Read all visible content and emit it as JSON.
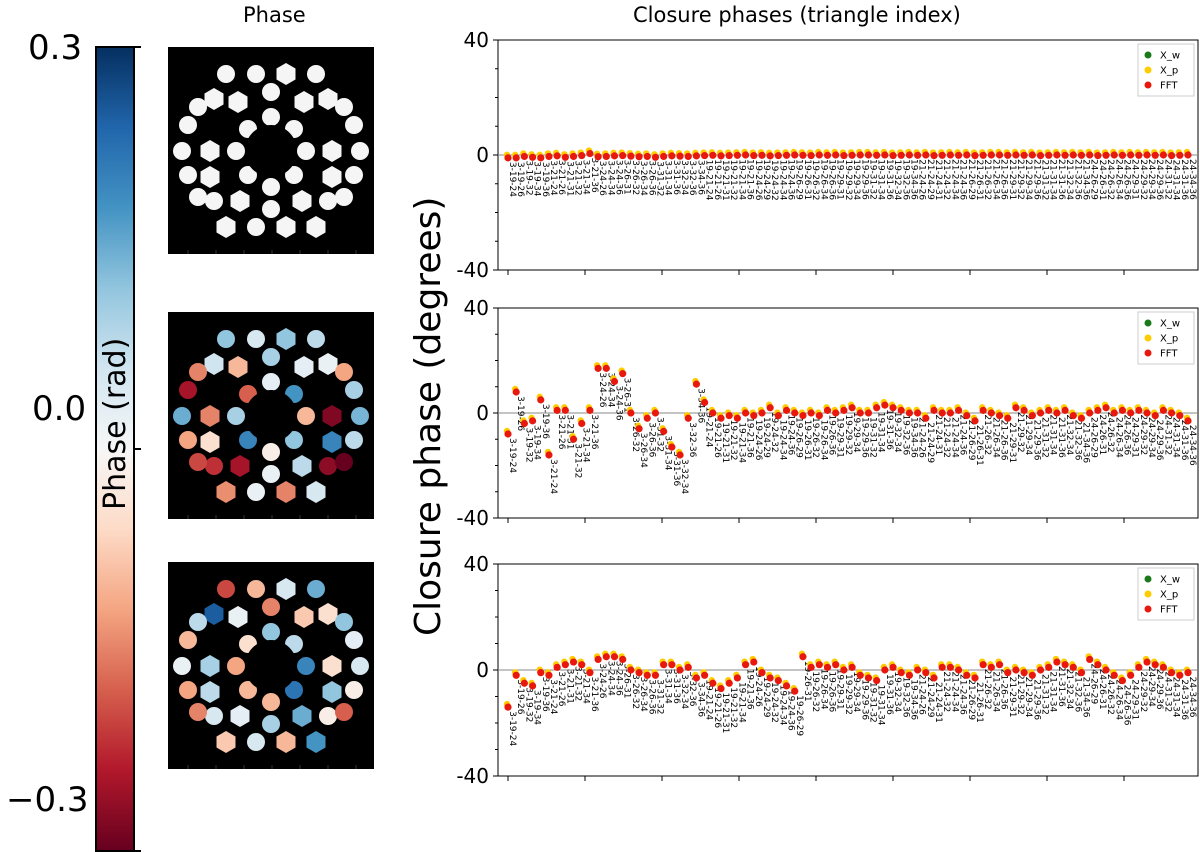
{
  "colorbar": {
    "label": "Phase (rad)",
    "max_label": "0.3",
    "mid_label": "0.0",
    "min_label": "−0.3",
    "cmap": "RdBu",
    "colors": [
      "#053061",
      "#2166ac",
      "#4393c3",
      "#92c5de",
      "#d1e5f0",
      "#f7f7f7",
      "#fddbc7",
      "#f4a582",
      "#d6604d",
      "#b2182b",
      "#67001f"
    ]
  },
  "pupil_title": "Phase",
  "closure_title": "Closure phases (triangle index)",
  "shared_ylabel": "Closure phase (degrees)",
  "chart_data": [
    {
      "type": "scatter",
      "ylim": [
        -40,
        40
      ],
      "yticks": [
        "40",
        "0",
        "-40"
      ],
      "legend_placement": "top-right",
      "series": [
        {
          "name": "X_w",
          "color": "#1a7a1a"
        },
        {
          "name": "X_p",
          "color": "#ffcc00"
        },
        {
          "name": "FFT",
          "color": "#e8190c"
        }
      ],
      "x_count": 84,
      "x_labels": [
        "3-19-24",
        "3-19-26",
        "3-19-32",
        "3-19-34",
        "3-19-36",
        "3-21-24",
        "3-21-26",
        "3-21-31",
        "3-21-32",
        "3-21-34",
        "3-21-36",
        "3-24-26",
        "3-24-34",
        "3-24-36",
        "3-26-31",
        "3-26-32",
        "3-26-34",
        "3-26-36",
        "3-31-32",
        "3-31-34",
        "3-31-36",
        "3-32-34",
        "3-32-36",
        "3-34-36",
        "19-21-24",
        "19-21-26",
        "19-21-31",
        "19-21-32",
        "19-21-34",
        "19-21-36",
        "19-24-26",
        "19-24-29",
        "19-24-32",
        "19-24-34",
        "19-24-36",
        "19-26-29",
        "19-26-31",
        "19-26-32",
        "19-26-34",
        "19-26-36",
        "19-29-31",
        "19-29-32",
        "19-29-34",
        "19-29-36",
        "19-31-32",
        "19-31-34",
        "19-31-36",
        "19-32-34",
        "19-32-36",
        "19-34-36",
        "21-24-26",
        "21-24-29",
        "21-24-31",
        "21-24-32",
        "21-24-34",
        "21-24-36",
        "21-26-29",
        "21-26-31",
        "21-26-32",
        "21-26-34",
        "21-26-36",
        "21-29-31",
        "21-29-32",
        "21-29-34",
        "21-29-36",
        "21-31-32",
        "21-31-34",
        "21-31-36",
        "21-32-34",
        "21-32-36",
        "21-34-36",
        "24-26-29",
        "24-26-31",
        "24-26-32",
        "24-26-34",
        "24-26-36",
        "24-29-31",
        "24-29-32",
        "24-29-34",
        "24-29-36",
        "24-31-32",
        "24-31-34",
        "24-31-36",
        "24-34-36"
      ],
      "values": [
        -1,
        -1,
        -0.5,
        -0.8,
        -1,
        -0.5,
        -0.3,
        -0.8,
        -0.5,
        -0.2,
        0.5,
        -0.6,
        -0.5,
        -0.3,
        -0.2,
        -0.4,
        -0.6,
        -0.5,
        -0.8,
        -0.5,
        -0.3,
        -0.4,
        -0.5,
        -0.3,
        -0.2,
        -0.1,
        -0.3,
        -0.2,
        -0.1,
        0,
        -0.2,
        -0.1,
        -0.3,
        -0.2,
        -0.1,
        0,
        -0.1,
        -0.2,
        0,
        -0.1,
        0,
        -0.2,
        -0.1,
        0,
        0,
        -0.1,
        0,
        -0.2,
        -0.1,
        0,
        -0.1,
        0,
        -0.2,
        -0.1,
        0,
        -0.1,
        0,
        -0.2,
        -0.1,
        0,
        0,
        -0.1,
        0,
        -0.1,
        0,
        -0.2,
        -0.1,
        0,
        -0.1,
        0,
        -0.1,
        0,
        -0.2,
        -0.1,
        0,
        -0.1,
        0,
        -0.1,
        0,
        -0.1,
        0,
        -0.2,
        -0.1,
        0
      ]
    },
    {
      "type": "scatter",
      "ylim": [
        -40,
        40
      ],
      "yticks": [
        "40",
        "0",
        "-40"
      ],
      "legend_placement": "top-right",
      "series": [
        {
          "name": "X_w",
          "color": "#1a7a1a"
        },
        {
          "name": "X_p",
          "color": "#ffcc00"
        },
        {
          "name": "FFT",
          "color": "#e8190c"
        }
      ],
      "x_count": 84,
      "x_labels": [
        "3-19-24",
        "3-19-26",
        "3-19-32",
        "3-19-34",
        "3-19-36",
        "3-21-24",
        "3-21-26",
        "3-21-31",
        "3-21-32",
        "3-21-34",
        "3-21-36",
        "3-24-26",
        "3-24-34",
        "3-24-36",
        "3-26-31",
        "3-26-32",
        "3-26-34",
        "3-26-36",
        "3-31-32",
        "3-31-34",
        "3-31-36",
        "3-32-34",
        "3-32-36",
        "3-34-36",
        "19-21-24",
        "19-21-26",
        "19-21-31",
        "19-21-32",
        "19-21-34",
        "19-21-36",
        "19-24-26",
        "19-24-29",
        "19-24-32",
        "19-24-34",
        "19-24-36",
        "19-26-29",
        "19-26-31",
        "19-26-32",
        "19-26-34",
        "19-26-36",
        "19-29-31",
        "19-29-32",
        "19-29-34",
        "19-29-36",
        "19-31-32",
        "19-31-34",
        "19-31-36",
        "19-32-34",
        "19-32-36",
        "19-34-36",
        "21-24-26",
        "21-24-29",
        "21-24-31",
        "21-24-32",
        "21-24-34",
        "21-24-36",
        "21-26-29",
        "21-26-31",
        "21-26-32",
        "21-26-34",
        "21-26-36",
        "21-29-31",
        "21-29-32",
        "21-29-34",
        "21-29-36",
        "21-31-32",
        "21-31-34",
        "21-31-36",
        "21-32-34",
        "21-32-36",
        "21-34-36",
        "24-26-29",
        "24-26-31",
        "24-26-32",
        "24-26-34",
        "24-26-36",
        "24-29-31",
        "24-29-32",
        "24-29-34",
        "24-29-36",
        "24-31-32",
        "24-31-34",
        "24-31-36",
        "24-34-36"
      ],
      "values": [
        -8,
        8,
        -4,
        -3,
        5,
        -16,
        1,
        1,
        -10,
        -4,
        1,
        17,
        17,
        12,
        15,
        0,
        -6,
        -2,
        0,
        -7,
        -13,
        -16,
        -2,
        11,
        4,
        0,
        -2,
        -1,
        -2,
        0,
        -1,
        0,
        2,
        -1,
        1,
        0,
        -1,
        0,
        -1,
        1,
        0,
        1,
        2,
        0,
        0,
        2,
        3,
        2,
        1,
        0,
        0,
        -2,
        1,
        0,
        0,
        1,
        -1,
        -3,
        1,
        0,
        -1,
        -2,
        2,
        1,
        -1,
        0,
        1,
        0,
        1,
        -1,
        -2,
        0,
        1,
        2,
        0,
        1,
        0,
        1,
        0,
        -1,
        1,
        0,
        -1,
        -3
      ]
    },
    {
      "type": "scatter",
      "ylim": [
        -40,
        40
      ],
      "yticks": [
        "40",
        "0",
        "-40"
      ],
      "legend_placement": "top-right",
      "series": [
        {
          "name": "X_w",
          "color": "#1a7a1a"
        },
        {
          "name": "X_p",
          "color": "#ffcc00"
        },
        {
          "name": "FFT",
          "color": "#e8190c"
        }
      ],
      "x_count": 84,
      "x_labels": [
        "3-19-24",
        "3-19-26",
        "3-19-32",
        "3-19-34",
        "3-19-36",
        "3-21-24",
        "3-21-26",
        "3-21-31",
        "3-21-32",
        "3-21-34",
        "3-21-36",
        "3-24-26",
        "3-24-34",
        "3-24-36",
        "3-26-31",
        "3-26-32",
        "3-26-34",
        "3-26-36",
        "3-31-32",
        "3-31-34",
        "3-31-36",
        "3-32-34",
        "3-32-36",
        "3-34-36",
        "19-21-24",
        "19-21-26",
        "19-21-31",
        "19-21-32",
        "19-21-34",
        "19-21-36",
        "19-24-26",
        "19-24-29",
        "19-24-32",
        "19-24-34",
        "19-24-36",
        "19-26-29",
        "19-26-31",
        "19-26-32",
        "19-26-34",
        "19-26-36",
        "19-29-31",
        "19-29-32",
        "19-29-34",
        "19-29-36",
        "19-31-32",
        "19-31-34",
        "19-31-36",
        "19-32-34",
        "19-32-36",
        "19-34-36",
        "21-24-26",
        "21-24-29",
        "21-24-31",
        "21-24-32",
        "21-24-34",
        "21-24-36",
        "21-26-29",
        "21-26-31",
        "21-26-32",
        "21-26-34",
        "21-26-36",
        "21-29-31",
        "21-29-32",
        "21-29-34",
        "21-29-36",
        "21-31-32",
        "21-31-34",
        "21-31-36",
        "21-32-34",
        "21-32-36",
        "21-34-36",
        "24-26-29",
        "24-26-31",
        "24-26-32",
        "24-26-34",
        "24-26-36",
        "24-29-31",
        "24-29-32",
        "24-29-34",
        "24-29-36",
        "24-31-32",
        "24-31-34",
        "24-31-36",
        "24-34-36"
      ],
      "values": [
        -14,
        -2,
        -5,
        -6,
        -1,
        -2,
        1,
        2,
        3,
        2,
        -1,
        4,
        5,
        5,
        4,
        0,
        -1,
        -2,
        -2,
        2,
        2,
        0,
        1,
        -3,
        -2,
        -5,
        -7,
        -5,
        -3,
        2,
        3,
        -1,
        -3,
        -4,
        -6,
        -8,
        5,
        1,
        2,
        1,
        2,
        0,
        1,
        -2,
        -3,
        -4,
        0,
        1,
        -1,
        -2,
        0,
        -1,
        -3,
        1,
        1,
        0,
        -2,
        -3,
        2,
        1,
        2,
        -1,
        0,
        -1,
        -2,
        0,
        1,
        3,
        2,
        1,
        -1,
        4,
        2,
        0,
        -2,
        -4,
        -2,
        1,
        3,
        2,
        1,
        -1,
        -2,
        -1
      ]
    }
  ],
  "pupils": [
    {
      "name": "pupil-top",
      "mode": "uniform",
      "values": [
        0,
        0,
        0,
        0,
        0,
        0,
        0,
        0,
        0,
        0,
        0,
        0,
        0,
        0,
        0,
        0,
        0,
        0,
        0,
        0,
        0,
        0,
        0,
        0,
        0,
        0,
        0,
        0,
        0,
        0,
        0,
        0,
        0,
        0,
        0,
        0,
        0,
        0,
        0,
        0
      ]
    },
    {
      "name": "pupil-middle",
      "mode": "phase",
      "values": [
        0.12,
        0.05,
        0.12,
        0.08,
        0.06,
        0.1,
        0.02,
        -0.15,
        -0.12,
        -0.1,
        0.03,
        0.15,
        0.14,
        -0.15,
        -0.28,
        -0.25,
        0.1,
        -0.12,
        0.08,
        -0.05,
        0.2,
        -0.22,
        -0.27,
        -0.25,
        0.08,
        -0.14,
        0.02,
        -0.15,
        0.05,
        0.02,
        -0.18,
        0.18,
        0.1,
        -0.1,
        0.2,
        0.12,
        0.03,
        -0.02,
        -0.2,
        -0.3
      ]
    },
    {
      "name": "pupil-bottom",
      "mode": "phase",
      "values": [
        -0.2,
        -0.1,
        0.05,
        0.15,
        0.25,
        -0.15,
        -0.05,
        0.08,
        0.12,
        0.02,
        -0.08,
        0.02,
        0.05,
        0.1,
        -0.05,
        -0.1,
        0.03,
        -0.12,
        -0.02,
        0.08,
        0.12,
        0.05,
        -0.02,
        0.03,
        0.15,
        -0.08,
        0.05,
        -0.1,
        0.18,
        0.1,
        -0.05,
        0.08,
        -0.12,
        0.2,
        -0.1,
        0.22,
        0.12,
        -0.1,
        -0.15,
        -0.18
      ]
    }
  ]
}
